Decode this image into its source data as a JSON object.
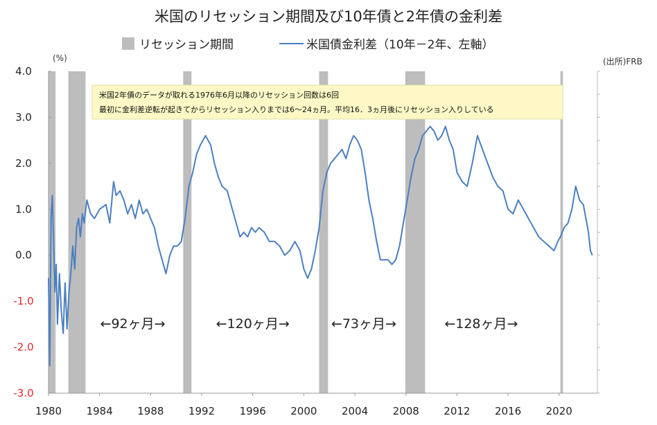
{
  "chart_data": {
    "type": "line",
    "title": "米国のリセッション期間及び10年債と2年債の金利差",
    "legend": [
      {
        "name": "リセッション期間",
        "color": "#bdbdbd",
        "kind": "box"
      },
      {
        "name": "米国債金利差（10年－2年、左軸）",
        "color": "#4a7fc1",
        "kind": "line"
      }
    ],
    "ylabel": "(%)",
    "source": "(出所)FRB",
    "ylim": [
      -3.0,
      4.0
    ],
    "xlim": [
      1980.0,
      2023.0
    ],
    "y_ticks": [
      "4.0",
      "3.0",
      "2.0",
      "1.0",
      "0.0",
      "-1.0",
      "-2.0",
      "-3.0"
    ],
    "x_ticks": [
      "1980",
      "1984",
      "1988",
      "1992",
      "1996",
      "2000",
      "2004",
      "2008",
      "2012",
      "2016",
      "2020"
    ],
    "annotation": [
      "米国2年債のデータが取れる1976年6月以降のリセッション回数は6回",
      "最初に金利差逆転が起きてからリセッション入りまでは6〜24ヵ月。平均16．3ヵ月後にリセッション入りしている"
    ],
    "period_labels": [
      {
        "text": "←92ヶ月→",
        "x": 1986.6
      },
      {
        "text": "←120ヶ月→",
        "x": 1996.0
      },
      {
        "text": "←73ヶ月→",
        "x": 2004.7
      },
      {
        "text": "←128ヶ月→",
        "x": 2013.9
      }
    ],
    "recessions": [
      [
        1980.0,
        1980.55
      ],
      [
        1981.55,
        1982.9
      ],
      [
        1990.55,
        1991.2
      ],
      [
        2001.2,
        2001.9
      ],
      [
        2007.95,
        2009.5
      ],
      [
        2020.1,
        2020.3
      ]
    ],
    "series": [
      {
        "name": "米国債金利差（10年－2年、左軸）",
        "color": "#4a7fc1",
        "x": [
          1980.0,
          1980.1,
          1980.2,
          1980.3,
          1980.4,
          1980.5,
          1980.6,
          1980.7,
          1980.85,
          1981.0,
          1981.15,
          1981.3,
          1981.45,
          1981.6,
          1981.75,
          1981.9,
          1982.05,
          1982.2,
          1982.35,
          1982.5,
          1982.65,
          1982.8,
          1983.0,
          1983.3,
          1983.6,
          1984.0,
          1984.5,
          1984.8,
          1985.1,
          1985.3,
          1985.6,
          1985.9,
          1986.2,
          1986.5,
          1986.8,
          1987.1,
          1987.4,
          1987.7,
          1988.0,
          1988.3,
          1988.6,
          1988.9,
          1989.2,
          1989.5,
          1989.8,
          1990.1,
          1990.4,
          1990.7,
          1991.0,
          1991.3,
          1991.6,
          1991.9,
          1992.3,
          1992.7,
          1993.0,
          1993.3,
          1993.6,
          1994.0,
          1994.3,
          1994.6,
          1995.0,
          1995.3,
          1995.6,
          1995.9,
          1996.2,
          1996.5,
          1996.9,
          1997.3,
          1997.7,
          1998.1,
          1998.5,
          1998.9,
          1999.3,
          1999.7,
          2000.0,
          2000.3,
          2000.6,
          2000.9,
          2001.2,
          2001.5,
          2001.8,
          2002.1,
          2002.4,
          2002.7,
          2003.0,
          2003.3,
          2003.6,
          2003.9,
          2004.2,
          2004.5,
          2004.8,
          2005.1,
          2005.4,
          2005.7,
          2006.0,
          2006.3,
          2006.6,
          2006.9,
          2007.2,
          2007.5,
          2007.8,
          2008.1,
          2008.4,
          2008.7,
          2009.0,
          2009.3,
          2009.6,
          2009.9,
          2010.2,
          2010.5,
          2010.8,
          2011.1,
          2011.4,
          2011.7,
          2012.0,
          2012.4,
          2012.8,
          2013.2,
          2013.6,
          2014.0,
          2014.4,
          2014.8,
          2015.2,
          2015.6,
          2016.0,
          2016.4,
          2016.8,
          2017.2,
          2017.6,
          2018.0,
          2018.4,
          2018.8,
          2019.2,
          2019.6,
          2019.9,
          2020.1,
          2020.4,
          2020.7,
          2021.0,
          2021.3,
          2021.6,
          2021.9,
          2022.1,
          2022.3,
          2022.45,
          2022.6
        ],
        "values": [
          -0.5,
          -2.4,
          0.8,
          1.3,
          0.3,
          -0.8,
          -0.2,
          -1.5,
          -0.4,
          -1.2,
          -1.7,
          -0.6,
          -1.6,
          -0.8,
          -0.4,
          0.2,
          -0.3,
          0.6,
          0.8,
          0.4,
          0.9,
          0.7,
          1.2,
          0.9,
          0.8,
          1.0,
          1.1,
          0.7,
          1.6,
          1.3,
          1.4,
          1.2,
          0.9,
          1.1,
          0.8,
          1.2,
          0.9,
          1.0,
          0.8,
          0.6,
          0.2,
          -0.1,
          -0.4,
          0.0,
          0.2,
          0.2,
          0.3,
          0.8,
          1.5,
          1.8,
          2.2,
          2.4,
          2.6,
          2.4,
          2.0,
          1.7,
          1.5,
          1.4,
          1.1,
          0.8,
          0.4,
          0.5,
          0.4,
          0.6,
          0.5,
          0.6,
          0.5,
          0.3,
          0.3,
          0.2,
          0.0,
          0.1,
          0.3,
          0.1,
          -0.3,
          -0.5,
          -0.3,
          0.1,
          0.6,
          1.4,
          1.8,
          2.0,
          2.1,
          2.2,
          2.3,
          2.1,
          2.4,
          2.6,
          2.5,
          2.3,
          1.8,
          1.2,
          0.8,
          0.3,
          -0.1,
          -0.1,
          -0.1,
          -0.2,
          -0.1,
          0.2,
          0.7,
          1.2,
          1.7,
          2.1,
          2.3,
          2.6,
          2.7,
          2.8,
          2.7,
          2.5,
          2.6,
          2.8,
          2.5,
          2.3,
          1.8,
          1.6,
          1.5,
          2.0,
          2.6,
          2.3,
          2.0,
          1.7,
          1.5,
          1.4,
          1.0,
          0.9,
          1.2,
          1.0,
          0.8,
          0.6,
          0.4,
          0.3,
          0.2,
          0.1,
          0.3,
          0.4,
          0.6,
          0.7,
          1.0,
          1.5,
          1.2,
          1.1,
          0.8,
          0.5,
          0.1,
          0.0
        ]
      }
    ]
  }
}
